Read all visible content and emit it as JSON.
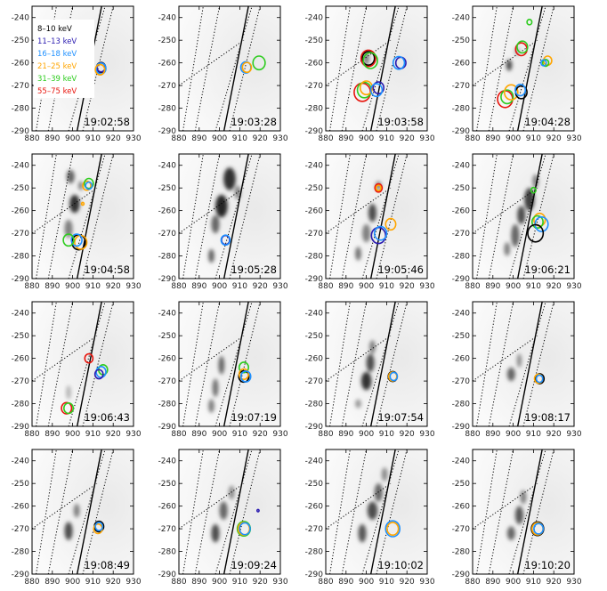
{
  "chart_data": {
    "type": "scatter",
    "layout": {
      "rows": 4,
      "cols": 4
    },
    "xlim": [
      880,
      930
    ],
    "ylim": [
      -290,
      -235
    ],
    "xticks": [
      880,
      890,
      900,
      910,
      920,
      930
    ],
    "yticks": [
      -240,
      -250,
      -260,
      -270,
      -280,
      -290
    ],
    "legend": {
      "placement": "top-left of first panel",
      "entries": [
        {
          "label": "8–10 keV",
          "color": "#000000"
        },
        {
          "label": "11–13 keV",
          "color": "#2a1bb0"
        },
        {
          "label": "16–18 keV",
          "color": "#1e90ff"
        },
        {
          "label": "21–25 keV",
          "color": "#ffa500"
        },
        {
          "label": "31–39 keV",
          "color": "#2ecc1f"
        },
        {
          "label": "55–75 keV",
          "color": "#e8140c"
        }
      ]
    },
    "panels": [
      {
        "time": "19:02:58",
        "circles": [
          {
            "band": 0,
            "x": 914,
            "y": -262,
            "r": 2.2
          },
          {
            "band": 1,
            "x": 914,
            "y": -262,
            "r": 2.0
          },
          {
            "band": 2,
            "x": 914,
            "y": -262.5,
            "r": 2.4
          },
          {
            "band": 3,
            "x": 913.5,
            "y": -263,
            "r": 2.3
          }
        ],
        "blobs": []
      },
      {
        "time": "19:03:28",
        "circles": [
          {
            "band": 2,
            "x": 913,
            "y": -262,
            "r": 2.5
          },
          {
            "band": 3,
            "x": 913.5,
            "y": -262,
            "r": 2.2
          },
          {
            "band": 4,
            "x": 919.5,
            "y": -260,
            "r": 3.0
          }
        ],
        "blobs": []
      },
      {
        "time": "19:03:58",
        "circles": [
          {
            "band": 0,
            "x": 901,
            "y": -258,
            "r": 3.0
          },
          {
            "band": 5,
            "x": 901,
            "y": -258,
            "r": 3.6
          },
          {
            "band": 4,
            "x": 902,
            "y": -259,
            "r": 3.5
          },
          {
            "band": 1,
            "x": 917,
            "y": -260,
            "r": 2.5
          },
          {
            "band": 2,
            "x": 916,
            "y": -260,
            "r": 2.8
          },
          {
            "band": 5,
            "x": 898,
            "y": -273,
            "r": 4.0
          },
          {
            "band": 4,
            "x": 899,
            "y": -272,
            "r": 3.4
          },
          {
            "band": 3,
            "x": 900,
            "y": -271,
            "r": 3.0
          },
          {
            "band": 1,
            "x": 906,
            "y": -271,
            "r": 2.6
          },
          {
            "band": 2,
            "x": 905,
            "y": -272,
            "r": 2.8
          }
        ],
        "blobs": [
          {
            "x": 900,
            "y": -258,
            "rx": 1.5,
            "ry": 3,
            "v": 0.5
          }
        ]
      },
      {
        "time": "19:04:28",
        "circles": [
          {
            "band": 4,
            "x": 908,
            "y": -242,
            "r": 1.2
          },
          {
            "band": 5,
            "x": 904,
            "y": -254,
            "r": 2.8
          },
          {
            "band": 4,
            "x": 904.5,
            "y": -253,
            "r": 2.6
          },
          {
            "band": 3,
            "x": 917,
            "y": -259,
            "r": 2.0
          },
          {
            "band": 4,
            "x": 916,
            "y": -260,
            "r": 1.5
          },
          {
            "band": 2,
            "x": 915,
            "y": -260,
            "r": 1.3
          },
          {
            "band": 5,
            "x": 896,
            "y": -276,
            "r": 3.7
          },
          {
            "band": 4,
            "x": 897,
            "y": -275,
            "r": 3.0
          },
          {
            "band": 3,
            "x": 899,
            "y": -273,
            "r": 3.3
          },
          {
            "band": 0,
            "x": 904,
            "y": -273,
            "r": 2.8
          },
          {
            "band": 2,
            "x": 903.5,
            "y": -272,
            "r": 2.5
          }
        ],
        "blobs": [
          {
            "x": 898,
            "y": -261,
            "rx": 1.5,
            "ry": 2.5,
            "v": 0.7
          },
          {
            "x": 902,
            "y": -255,
            "rx": 1.2,
            "ry": 2,
            "v": 0.35
          }
        ]
      },
      {
        "time": "19:04:58",
        "circles": [
          {
            "band": 3,
            "x": 907,
            "y": -249,
            "r": 2.0
          },
          {
            "band": 4,
            "x": 908,
            "y": -248,
            "r": 2.2
          },
          {
            "band": 2,
            "x": 908,
            "y": -249,
            "r": 1.6
          },
          {
            "band": 3,
            "x": 905,
            "y": -257,
            "r": 0.6
          },
          {
            "band": 0,
            "x": 903,
            "y": -274,
            "r": 3.3
          },
          {
            "band": 3,
            "x": 904,
            "y": -274,
            "r": 3.0
          },
          {
            "band": 2,
            "x": 902,
            "y": -273,
            "r": 2.6
          },
          {
            "band": 4,
            "x": 898,
            "y": -273,
            "r": 2.6
          }
        ],
        "blobs": [
          {
            "x": 899,
            "y": -245,
            "rx": 2,
            "ry": 3,
            "v": 0.6
          },
          {
            "x": 901,
            "y": -257,
            "rx": 2.5,
            "ry": 4,
            "v": 0.8
          },
          {
            "x": 898,
            "y": -268,
            "rx": 2,
            "ry": 4,
            "v": 0.5
          },
          {
            "x": 904,
            "y": -249,
            "rx": 1.2,
            "ry": 2,
            "v": 0.5
          }
        ]
      },
      {
        "time": "19:05:28",
        "circles": [
          {
            "band": 1,
            "x": 903,
            "y": -273,
            "r": 2.0
          },
          {
            "band": 2,
            "x": 903,
            "y": -273,
            "r": 2.2
          }
        ],
        "blobs": [
          {
            "x": 905,
            "y": -246,
            "rx": 3,
            "ry": 5,
            "v": 0.8
          },
          {
            "x": 901,
            "y": -258,
            "rx": 3,
            "ry": 5,
            "v": 0.85
          },
          {
            "x": 898,
            "y": -266,
            "rx": 2,
            "ry": 4,
            "v": 0.6
          },
          {
            "x": 896,
            "y": -280,
            "rx": 1.5,
            "ry": 3,
            "v": 0.6
          },
          {
            "x": 909,
            "y": -252,
            "rx": 1.5,
            "ry": 3,
            "v": 0.5
          }
        ]
      },
      {
        "time": "19:05:46",
        "circles": [
          {
            "band": 5,
            "x": 906,
            "y": -250,
            "r": 1.8
          },
          {
            "band": 3,
            "x": 906,
            "y": -250,
            "r": 1.2
          },
          {
            "band": 3,
            "x": 912,
            "y": -266,
            "r": 2.5
          },
          {
            "band": 1,
            "x": 906,
            "y": -271,
            "r": 3.5
          },
          {
            "band": 2,
            "x": 907,
            "y": -270,
            "r": 3.0
          }
        ],
        "blobs": [
          {
            "x": 903,
            "y": -261,
            "rx": 2,
            "ry": 4,
            "v": 0.7
          },
          {
            "x": 900,
            "y": -270,
            "rx": 2,
            "ry": 4,
            "v": 0.5
          },
          {
            "x": 896,
            "y": -279,
            "rx": 1.5,
            "ry": 3,
            "v": 0.55
          },
          {
            "x": 906,
            "y": -249,
            "rx": 1.5,
            "ry": 2,
            "v": 0.5
          }
        ]
      },
      {
        "time": "19:06:21",
        "circles": [
          {
            "band": 4,
            "x": 910,
            "y": -251,
            "r": 1.2
          },
          {
            "band": 3,
            "x": 913,
            "y": -264,
            "r": 2.8
          },
          {
            "band": 4,
            "x": 912,
            "y": -265,
            "r": 2.7
          },
          {
            "band": 2,
            "x": 914,
            "y": -266,
            "r": 3.2
          },
          {
            "band": 0,
            "x": 911,
            "y": -270,
            "r": 3.8
          }
        ],
        "blobs": [
          {
            "x": 908,
            "y": -255,
            "rx": 2.5,
            "ry": 5,
            "v": 0.75
          },
          {
            "x": 904,
            "y": -262,
            "rx": 2,
            "ry": 4,
            "v": 0.7
          },
          {
            "x": 901,
            "y": -271,
            "rx": 2,
            "ry": 5,
            "v": 0.6
          },
          {
            "x": 897,
            "y": -277,
            "rx": 1.5,
            "ry": 3,
            "v": 0.5
          },
          {
            "x": 911,
            "y": -247,
            "rx": 1.5,
            "ry": 3,
            "v": 0.5
          }
        ]
      },
      {
        "time": "19:06:43",
        "circles": [
          {
            "band": 5,
            "x": 908,
            "y": -260,
            "r": 2.0
          },
          {
            "band": 4,
            "x": 915,
            "y": -265,
            "r": 2.2
          },
          {
            "band": 2,
            "x": 914,
            "y": -266,
            "r": 2.4
          },
          {
            "band": 1,
            "x": 913,
            "y": -267,
            "r": 2.0
          },
          {
            "band": 5,
            "x": 897,
            "y": -282,
            "r": 2.5
          },
          {
            "band": 4,
            "x": 898,
            "y": -282,
            "r": 2.3
          }
        ],
        "blobs": [
          {
            "x": 898,
            "y": -275,
            "rx": 1.2,
            "ry": 3,
            "v": 0.3
          }
        ]
      },
      {
        "time": "19:07:19",
        "circles": [
          {
            "band": 4,
            "x": 912,
            "y": -264,
            "r": 2.3
          },
          {
            "band": 0,
            "x": 912,
            "y": -268,
            "r": 2.5
          },
          {
            "band": 3,
            "x": 912,
            "y": -267,
            "r": 2.3
          },
          {
            "band": 2,
            "x": 913,
            "y": -268,
            "r": 2.4
          }
        ],
        "blobs": [
          {
            "x": 901,
            "y": -263,
            "rx": 1.5,
            "ry": 4,
            "v": 0.6
          },
          {
            "x": 898,
            "y": -273,
            "rx": 1.5,
            "ry": 4,
            "v": 0.55
          },
          {
            "x": 896,
            "y": -281,
            "rx": 1.5,
            "ry": 3,
            "v": 0.5
          }
        ]
      },
      {
        "time": "19:07:54",
        "circles": [
          {
            "band": 0,
            "x": 913,
            "y": -268,
            "r": 2.2
          },
          {
            "band": 3,
            "x": 913,
            "y": -268,
            "r": 2.0
          },
          {
            "band": 2,
            "x": 913.5,
            "y": -268,
            "r": 1.8
          }
        ],
        "blobs": [
          {
            "x": 902,
            "y": -262,
            "rx": 2,
            "ry": 4,
            "v": 0.7
          },
          {
            "x": 900,
            "y": -270,
            "rx": 2.5,
            "ry": 4,
            "v": 0.8
          },
          {
            "x": 903,
            "y": -255,
            "rx": 1.5,
            "ry": 3,
            "v": 0.5
          },
          {
            "x": 896,
            "y": -280,
            "rx": 1.5,
            "ry": 2,
            "v": 0.4
          }
        ]
      },
      {
        "time": "19:08:17",
        "circles": [
          {
            "band": 0,
            "x": 913,
            "y": -269,
            "r": 2.2
          },
          {
            "band": 3,
            "x": 912.5,
            "y": -269,
            "r": 2.0
          },
          {
            "band": 2,
            "x": 913,
            "y": -269,
            "r": 1.6
          }
        ],
        "blobs": [
          {
            "x": 899,
            "y": -267,
            "rx": 2,
            "ry": 3,
            "v": 0.6
          },
          {
            "x": 903,
            "y": -261,
            "rx": 1.2,
            "ry": 3,
            "v": 0.45
          }
        ]
      },
      {
        "time": "19:08:49",
        "circles": [
          {
            "band": 0,
            "x": 913,
            "y": -269,
            "r": 2.3
          },
          {
            "band": 3,
            "x": 912.5,
            "y": -270,
            "r": 2.1
          },
          {
            "band": 2,
            "x": 913,
            "y": -269,
            "r": 1.8
          }
        ],
        "blobs": [
          {
            "x": 898,
            "y": -271,
            "rx": 2,
            "ry": 4,
            "v": 0.7
          },
          {
            "x": 902,
            "y": -262,
            "rx": 1.5,
            "ry": 3,
            "v": 0.5
          }
        ]
      },
      {
        "time": "19:09:24",
        "circles": [
          {
            "band": 1,
            "x": 919,
            "y": -262,
            "r": 0.5
          },
          {
            "band": 4,
            "x": 912,
            "y": -270,
            "r": 3.2
          },
          {
            "band": 3,
            "x": 912,
            "y": -270,
            "r": 2.8
          },
          {
            "band": 2,
            "x": 912.5,
            "y": -270,
            "r": 2.6
          }
        ],
        "blobs": [
          {
            "x": 898,
            "y": -272,
            "rx": 2,
            "ry": 4,
            "v": 0.7
          },
          {
            "x": 902,
            "y": -262,
            "rx": 2,
            "ry": 4,
            "v": 0.6
          },
          {
            "x": 906,
            "y": -254,
            "rx": 1.5,
            "ry": 3,
            "v": 0.45
          }
        ]
      },
      {
        "time": "19:10:02",
        "circles": [
          {
            "band": 2,
            "x": 913,
            "y": -270,
            "r": 3.5
          },
          {
            "band": 3,
            "x": 913,
            "y": -270,
            "r": 2.8
          }
        ],
        "blobs": [
          {
            "x": 898,
            "y": -272,
            "rx": 2,
            "ry": 4,
            "v": 0.65
          },
          {
            "x": 903,
            "y": -262,
            "rx": 2.5,
            "ry": 4,
            "v": 0.7
          },
          {
            "x": 906,
            "y": -254,
            "rx": 2,
            "ry": 4,
            "v": 0.6
          },
          {
            "x": 909,
            "y": -246,
            "rx": 1.5,
            "ry": 3,
            "v": 0.45
          }
        ]
      },
      {
        "time": "19:10:20",
        "circles": [
          {
            "band": 0,
            "x": 912,
            "y": -270,
            "r": 3.0
          },
          {
            "band": 3,
            "x": 912,
            "y": -270,
            "r": 2.7
          },
          {
            "band": 2,
            "x": 912.5,
            "y": -270,
            "r": 2.3
          }
        ],
        "blobs": [
          {
            "x": 899,
            "y": -272,
            "rx": 2,
            "ry": 3,
            "v": 0.6
          },
          {
            "x": 903,
            "y": -264,
            "rx": 2,
            "ry": 4,
            "v": 0.65
          },
          {
            "x": 905,
            "y": -256,
            "rx": 1.5,
            "ry": 3,
            "v": 0.5
          }
        ]
      }
    ]
  }
}
